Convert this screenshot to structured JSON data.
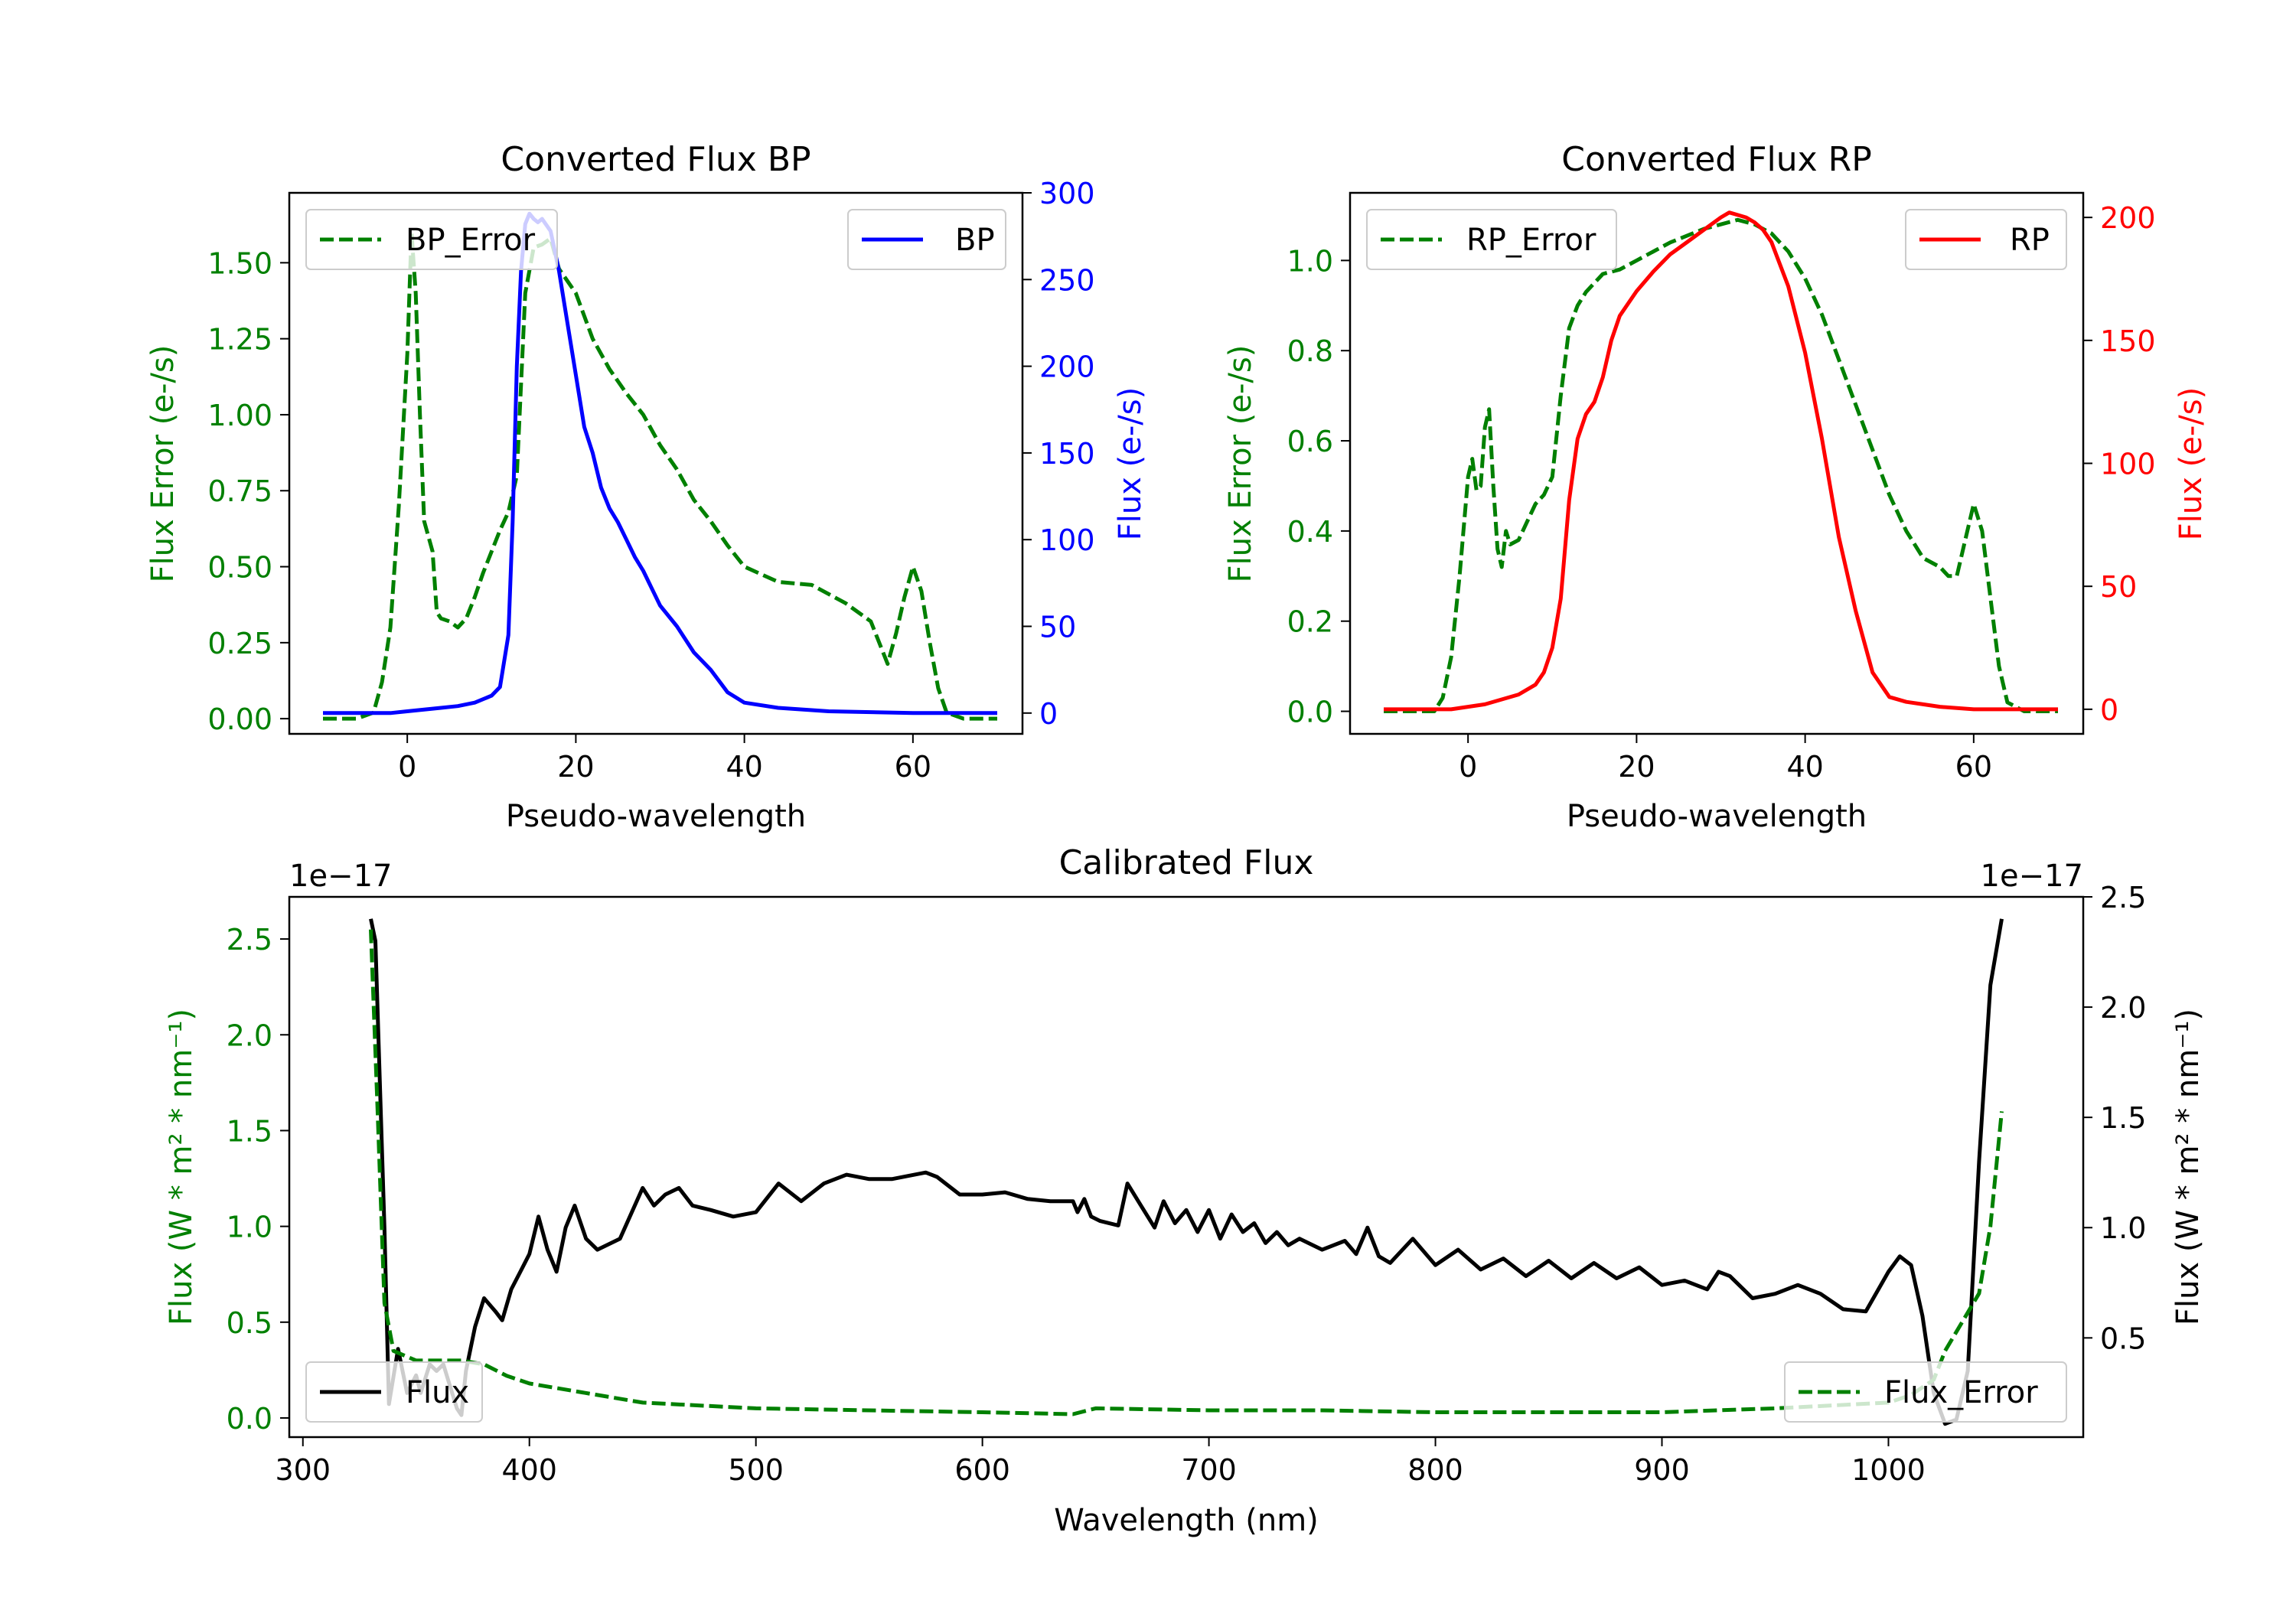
{
  "chart_data": [
    {
      "type": "line",
      "title": "Converted Flux BP",
      "xlabel": "Pseudo-wavelength",
      "ylabel_left": "Flux Error (e-/s)",
      "ylabel_right": "Flux (e-/s)",
      "xlim": [
        -14,
        73
      ],
      "ylim_left": [
        -0.05,
        1.73
      ],
      "ylim_right": [
        -12,
        300
      ],
      "xticks": [
        "0",
        "20",
        "40",
        "60"
      ],
      "yticks_left": [
        "0.00",
        "0.25",
        "0.50",
        "0.75",
        "1.00",
        "1.25",
        "1.50"
      ],
      "yticks_right": [
        "0",
        "50",
        "100",
        "150",
        "200",
        "250",
        "300"
      ],
      "grid": false,
      "colors": {
        "error": "#008000",
        "flux": "#0000ff"
      },
      "legend_left": {
        "label": "BP_Error",
        "position": "upper left"
      },
      "legend_right": {
        "label": "BP",
        "position": "upper right"
      },
      "series": [
        {
          "name": "BP_Error",
          "axis": "left",
          "style": "dashed",
          "x": [
            -10,
            -6,
            -4,
            -3,
            -2,
            -1,
            0,
            0.5,
            1,
            1.5,
            2,
            3,
            3.5,
            4,
            5,
            6,
            7,
            8,
            9,
            10,
            11,
            12,
            13,
            14,
            15,
            16,
            17,
            18,
            19,
            20,
            22,
            24,
            26,
            28,
            30,
            32,
            34,
            36,
            38,
            40,
            44,
            48,
            52,
            55,
            57,
            58,
            59,
            60,
            61,
            62,
            63,
            64,
            66,
            68,
            70
          ],
          "y": [
            0.0,
            0.0,
            0.02,
            0.12,
            0.3,
            0.7,
            1.2,
            1.6,
            1.4,
            1.0,
            0.65,
            0.55,
            0.35,
            0.33,
            0.32,
            0.3,
            0.33,
            0.4,
            0.48,
            0.55,
            0.62,
            0.68,
            0.8,
            1.4,
            1.55,
            1.56,
            1.58,
            1.48,
            1.44,
            1.4,
            1.25,
            1.15,
            1.07,
            1.0,
            0.9,
            0.82,
            0.72,
            0.65,
            0.57,
            0.5,
            0.45,
            0.44,
            0.38,
            0.32,
            0.18,
            0.28,
            0.4,
            0.5,
            0.42,
            0.25,
            0.1,
            0.02,
            0.0,
            0.0,
            0.0
          ]
        },
        {
          "name": "BP",
          "axis": "right",
          "style": "solid",
          "x": [
            -10,
            -2,
            0,
            2,
            4,
            6,
            8,
            10,
            11,
            12,
            12.5,
            13,
            13.5,
            14,
            14.5,
            15,
            15.5,
            16,
            17,
            18,
            19,
            20,
            21,
            22,
            23,
            24,
            25,
            26,
            27,
            28,
            29,
            30,
            32,
            34,
            36,
            38,
            40,
            44,
            50,
            60,
            70
          ],
          "y": [
            0,
            0,
            1,
            2,
            3,
            4,
            6,
            10,
            15,
            45,
            110,
            200,
            255,
            282,
            288,
            285,
            283,
            285,
            278,
            255,
            225,
            195,
            165,
            150,
            130,
            118,
            110,
            100,
            90,
            82,
            72,
            62,
            50,
            35,
            25,
            12,
            6,
            3,
            1,
            0,
            0
          ]
        }
      ]
    },
    {
      "type": "line",
      "title": "Converted Flux RP",
      "xlabel": "Pseudo-wavelength",
      "ylabel_left": "Flux Error (e-/s)",
      "ylabel_right": "Flux (e-/s)",
      "xlim": [
        -14,
        73
      ],
      "ylim_left": [
        -0.05,
        1.15
      ],
      "ylim_right": [
        -10,
        210
      ],
      "xticks": [
        "0",
        "20",
        "40",
        "60"
      ],
      "yticks_left": [
        "0.0",
        "0.2",
        "0.4",
        "0.6",
        "0.8",
        "1.0"
      ],
      "yticks_right": [
        "0",
        "50",
        "100",
        "150",
        "200"
      ],
      "grid": false,
      "colors": {
        "error": "#008000",
        "flux": "#ff0000"
      },
      "legend_left": {
        "label": "RP_Error",
        "position": "upper left"
      },
      "legend_right": {
        "label": "RP",
        "position": "upper right"
      },
      "series": [
        {
          "name": "RP_Error",
          "axis": "left",
          "style": "dashed",
          "x": [
            -10,
            -4,
            -3,
            -2,
            -1,
            0,
            0.5,
            1,
            1.5,
            2,
            2.5,
            3,
            3.5,
            4,
            4.5,
            5,
            6,
            7,
            8,
            9,
            10,
            11,
            12,
            13,
            14,
            16,
            18,
            20,
            24,
            28,
            30,
            32,
            34,
            36,
            38,
            40,
            42,
            44,
            46,
            48,
            50,
            52,
            54,
            56,
            57,
            58,
            59,
            60,
            61,
            62,
            63,
            64,
            66,
            70
          ],
          "y": [
            0.0,
            0.0,
            0.03,
            0.12,
            0.3,
            0.52,
            0.56,
            0.49,
            0.5,
            0.63,
            0.67,
            0.5,
            0.36,
            0.32,
            0.4,
            0.37,
            0.38,
            0.42,
            0.46,
            0.48,
            0.52,
            0.7,
            0.85,
            0.9,
            0.93,
            0.97,
            0.98,
            1.0,
            1.04,
            1.07,
            1.08,
            1.09,
            1.08,
            1.06,
            1.02,
            0.96,
            0.88,
            0.78,
            0.68,
            0.58,
            0.48,
            0.4,
            0.34,
            0.32,
            0.3,
            0.3,
            0.38,
            0.46,
            0.4,
            0.25,
            0.1,
            0.02,
            0.0,
            0.0
          ]
        },
        {
          "name": "RP",
          "axis": "right",
          "style": "solid",
          "x": [
            -10,
            -2,
            0,
            2,
            4,
            6,
            8,
            9,
            10,
            11,
            12,
            13,
            14,
            15,
            16,
            17,
            18,
            20,
            22,
            24,
            26,
            28,
            30,
            31,
            32,
            33,
            34,
            35,
            36,
            38,
            40,
            42,
            44,
            46,
            48,
            50,
            52,
            54,
            56,
            58,
            60,
            62,
            65,
            70
          ],
          "y": [
            0,
            0,
            1,
            2,
            4,
            6,
            10,
            15,
            25,
            45,
            85,
            110,
            120,
            125,
            135,
            150,
            160,
            170,
            178,
            185,
            190,
            195,
            200,
            202,
            201,
            200,
            198,
            195,
            190,
            172,
            145,
            110,
            70,
            40,
            15,
            5,
            3,
            2,
            1,
            0.5,
            0,
            0,
            0,
            0
          ]
        }
      ]
    },
    {
      "type": "line",
      "title": "Calibrated Flux",
      "xlabel": "Wavelength (nm)",
      "ylabel_left": "Flux (W * m² * nm⁻¹)",
      "ylabel_right": "Flux (W * m² * nm⁻¹)",
      "offset_left": "1e−17",
      "offset_right": "1e−17",
      "xlim": [
        294,
        1086
      ],
      "ylim_left": [
        -0.1,
        2.72
      ],
      "ylim_right": [
        0.05,
        2.5
      ],
      "xticks": [
        "300",
        "400",
        "500",
        "600",
        "700",
        "800",
        "900",
        "1000"
      ],
      "yticks_left": [
        "0.0",
        "0.5",
        "1.0",
        "1.5",
        "2.0",
        "2.5"
      ],
      "yticks_right": [
        "0.5",
        "1.0",
        "1.5",
        "2.0",
        "2.5"
      ],
      "grid": false,
      "colors": {
        "error": "#008000",
        "flux": "#000000"
      },
      "legend_left": {
        "label": "Flux",
        "position": "lower left"
      },
      "legend_right": {
        "label": "Flux_Error",
        "position": "lower right"
      },
      "series": [
        {
          "name": "Flux",
          "axis": "right",
          "style": "solid",
          "x": [
            330,
            332,
            336,
            338,
            342,
            346,
            350,
            352,
            356,
            359,
            362,
            365,
            368,
            370,
            372,
            376,
            380,
            385,
            388,
            392,
            396,
            400,
            404,
            408,
            412,
            416,
            420,
            425,
            430,
            440,
            450,
            455,
            460,
            466,
            472,
            480,
            490,
            500,
            510,
            520,
            530,
            540,
            550,
            560,
            570,
            575,
            580,
            590,
            600,
            610,
            620,
            630,
            640,
            642,
            645,
            648,
            652,
            660,
            664,
            670,
            676,
            680,
            685,
            690,
            695,
            700,
            705,
            710,
            715,
            720,
            725,
            730,
            735,
            740,
            750,
            760,
            765,
            770,
            775,
            780,
            790,
            800,
            810,
            820,
            830,
            840,
            850,
            860,
            870,
            880,
            890,
            900,
            910,
            920,
            925,
            930,
            940,
            950,
            960,
            970,
            980,
            990,
            1000,
            1005,
            1010,
            1015,
            1020,
            1025,
            1030,
            1035,
            1040,
            1045,
            1050
          ],
          "y": [
            2.4,
            2.3,
            1.0,
            0.2,
            0.45,
            0.25,
            0.33,
            0.25,
            0.38,
            0.35,
            0.38,
            0.28,
            0.18,
            0.15,
            0.35,
            0.55,
            0.68,
            0.62,
            0.58,
            0.72,
            0.8,
            0.88,
            1.05,
            0.9,
            0.8,
            1.0,
            1.1,
            0.95,
            0.9,
            0.95,
            1.18,
            1.1,
            1.15,
            1.18,
            1.1,
            1.08,
            1.05,
            1.07,
            1.2,
            1.12,
            1.2,
            1.24,
            1.22,
            1.22,
            1.24,
            1.25,
            1.23,
            1.15,
            1.15,
            1.16,
            1.13,
            1.12,
            1.12,
            1.07,
            1.13,
            1.05,
            1.03,
            1.01,
            1.2,
            1.1,
            1.0,
            1.12,
            1.02,
            1.08,
            0.98,
            1.08,
            0.95,
            1.06,
            0.98,
            1.02,
            0.93,
            0.98,
            0.92,
            0.95,
            0.9,
            0.94,
            0.88,
            1.0,
            0.87,
            0.84,
            0.95,
            0.83,
            0.9,
            0.81,
            0.86,
            0.78,
            0.85,
            0.77,
            0.84,
            0.77,
            0.82,
            0.74,
            0.76,
            0.72,
            0.8,
            0.78,
            0.68,
            0.7,
            0.74,
            0.7,
            0.63,
            0.62,
            0.8,
            0.87,
            0.83,
            0.6,
            0.25,
            0.11,
            0.13,
            0.35,
            1.3,
            2.1,
            2.4
          ]
        },
        {
          "name": "Flux_Error",
          "axis": "left",
          "style": "dashed",
          "x": [
            330,
            333,
            336,
            340,
            350,
            360,
            370,
            380,
            390,
            400,
            420,
            450,
            500,
            550,
            600,
            640,
            650,
            700,
            750,
            800,
            850,
            900,
            950,
            1000,
            1010,
            1020,
            1025,
            1030,
            1035,
            1040,
            1045,
            1050
          ],
          "y": [
            2.55,
            1.6,
            0.6,
            0.35,
            0.3,
            0.3,
            0.3,
            0.28,
            0.22,
            0.18,
            0.14,
            0.08,
            0.05,
            0.04,
            0.03,
            0.02,
            0.05,
            0.04,
            0.04,
            0.03,
            0.03,
            0.03,
            0.05,
            0.08,
            0.12,
            0.2,
            0.35,
            0.45,
            0.55,
            0.65,
            1.0,
            1.6
          ]
        }
      ]
    }
  ]
}
